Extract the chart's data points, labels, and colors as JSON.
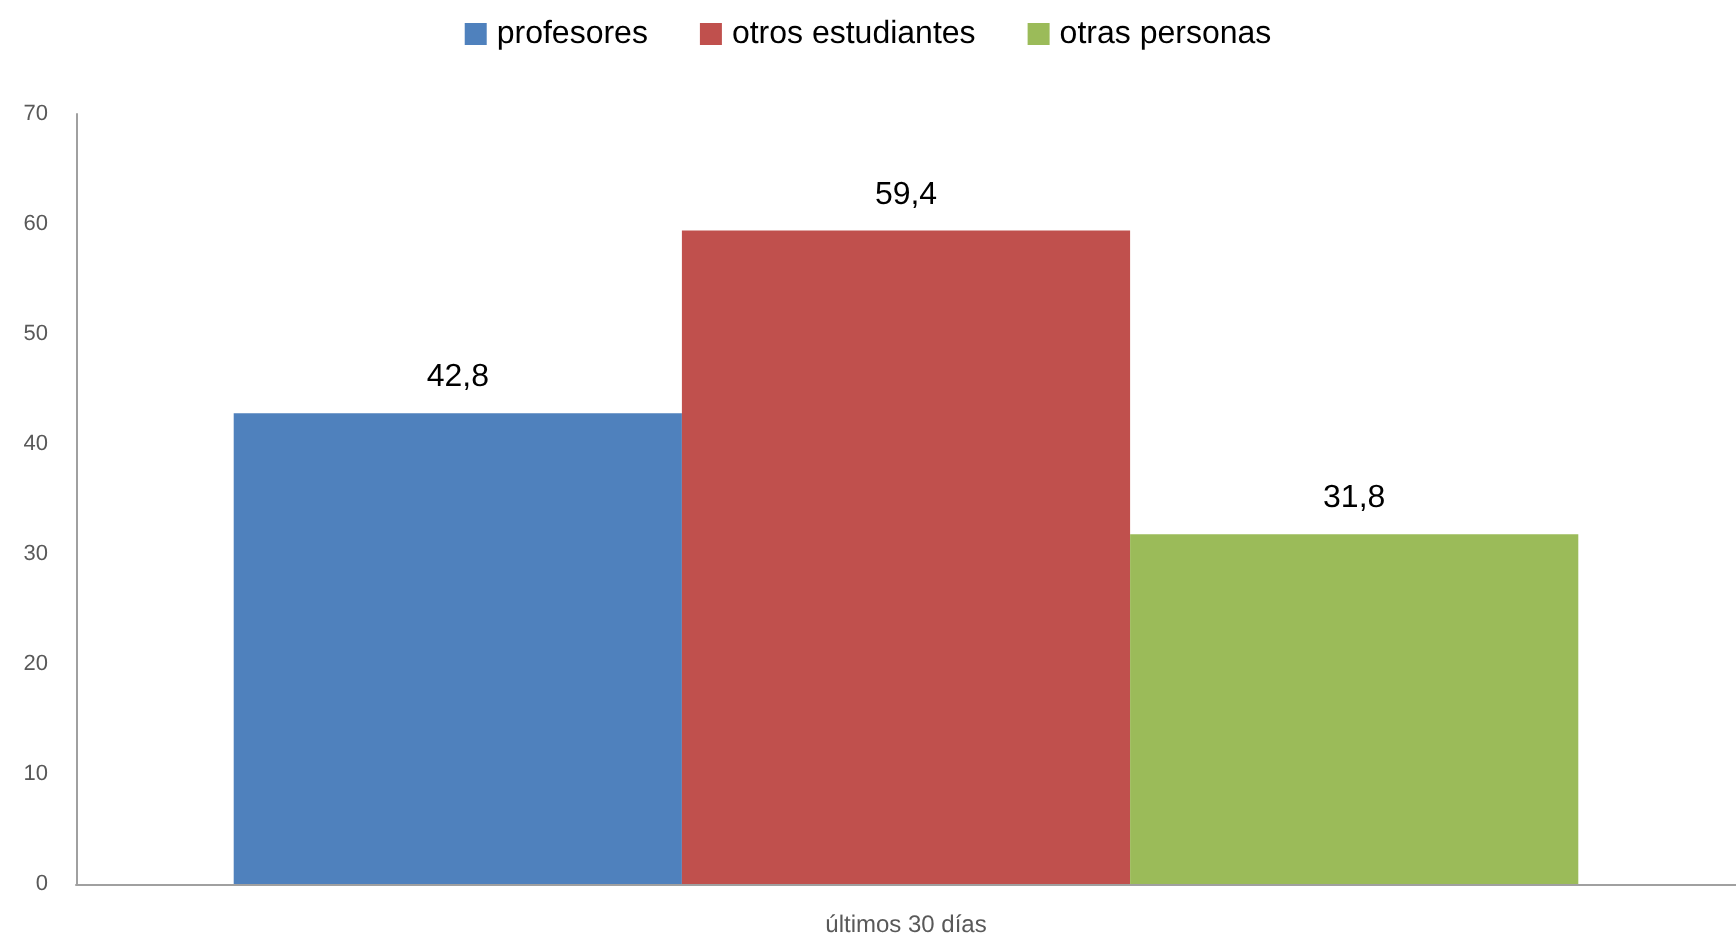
{
  "chart_data": {
    "type": "bar",
    "categories": [
      "últimos 30 días"
    ],
    "series": [
      {
        "name": "profesores",
        "color": "#4f81bd",
        "values": [
          42.8
        ],
        "value_labels": [
          "42,8"
        ]
      },
      {
        "name": "otros estudiantes",
        "color": "#c0504d",
        "values": [
          59.4
        ],
        "value_labels": [
          "59,4"
        ]
      },
      {
        "name": "otras personas",
        "color": "#9bbb59",
        "values": [
          31.8
        ],
        "value_labels": [
          "31,8"
        ]
      }
    ],
    "ylim": [
      0,
      70
    ],
    "yticks": [
      0,
      10,
      20,
      30,
      40,
      50,
      60,
      70
    ],
    "grid": false,
    "legend": "top"
  }
}
